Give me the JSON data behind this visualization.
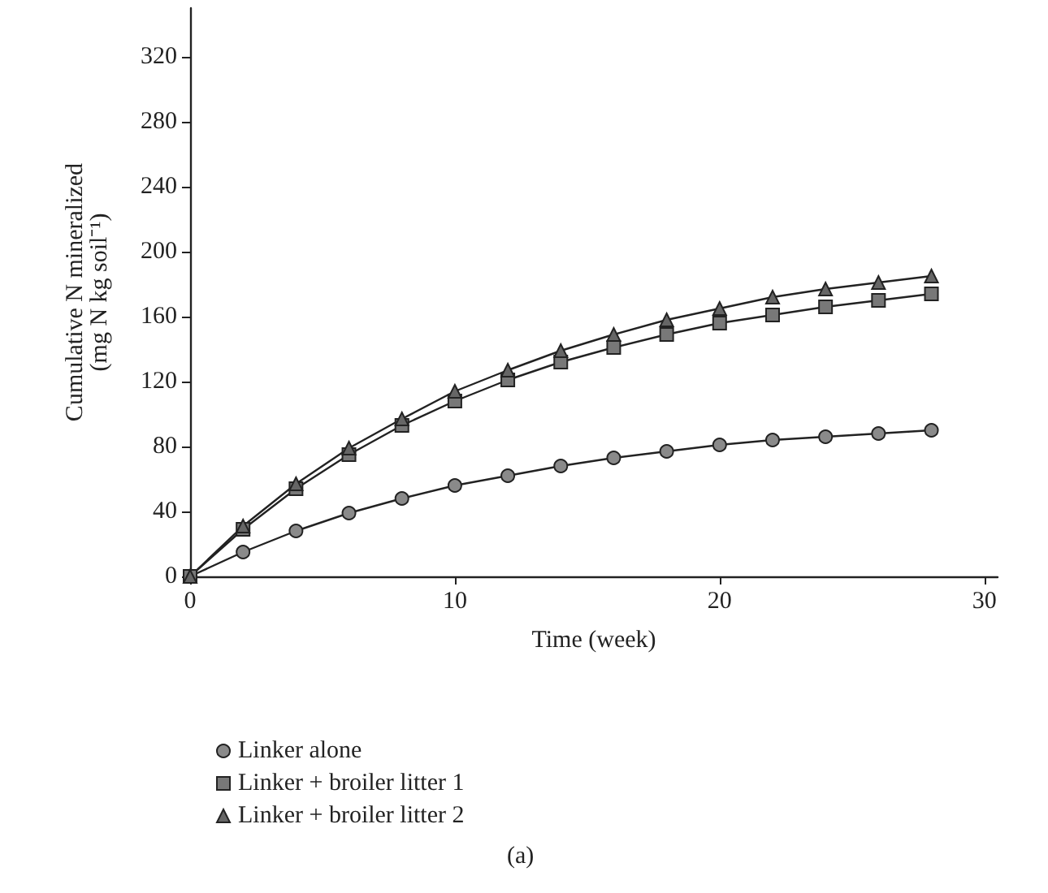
{
  "chart_data": {
    "type": "line",
    "xlabel": "Time (week)",
    "ylabel": "Cumulative N mineralized\n(mg N kg soil⁻¹)",
    "x": [
      0,
      2,
      4,
      6,
      8,
      10,
      12,
      14,
      16,
      18,
      20,
      22,
      24,
      26,
      28
    ],
    "series": [
      {
        "name": "Linker alone",
        "color": "#8a8a8a",
        "marker": "circle",
        "values": [
          0,
          15,
          28,
          39,
          48,
          56,
          62,
          68,
          73,
          77,
          81,
          84,
          86,
          88,
          90
        ]
      },
      {
        "name": "Linker + broiler litter 1",
        "color": "#787878",
        "marker": "square",
        "values": [
          0,
          29,
          54,
          75,
          93,
          108,
          121,
          132,
          141,
          149,
          156,
          161,
          166,
          170,
          174
        ]
      },
      {
        "name": "Linker + broiler litter 2",
        "color": "#666666",
        "marker": "triangle",
        "values": [
          0,
          31,
          57,
          79,
          97,
          114,
          127,
          139,
          149,
          158,
          165,
          172,
          177,
          181,
          185
        ]
      }
    ],
    "xlim": [
      0,
      30.5
    ],
    "xticks": [
      0,
      10,
      20,
      30
    ],
    "ylim": [
      0,
      350
    ],
    "yticks": [
      0,
      40,
      80,
      120,
      160,
      200,
      240,
      280,
      320
    ],
    "grid": false,
    "legend": "bottom left",
    "line_style": "solid",
    "annotations": [
      "(a)"
    ]
  }
}
